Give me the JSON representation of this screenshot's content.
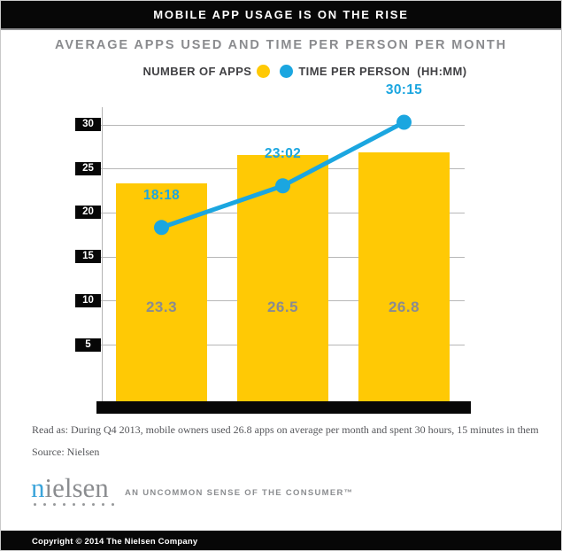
{
  "header": {
    "title": "MOBILE APP USAGE IS ON THE RISE"
  },
  "subtitle": "AVERAGE APPS USED AND TIME PER PERSON PER MONTH",
  "legend": {
    "apps_label": "NUMBER OF APPS",
    "time_label": "TIME PER PERSON  (HH:MM)",
    "apps_color": "#FFC905",
    "time_color": "#1BA6E0"
  },
  "chart_data": {
    "type": "bar+line",
    "title": "AVERAGE APPS USED AND TIME PER PERSON PER MONTH",
    "ylim": [
      0,
      32
    ],
    "yticks": [
      5,
      10,
      15,
      20,
      25,
      30
    ],
    "grid": true,
    "legend_position": "top",
    "series": [
      {
        "name": "NUMBER OF APPS",
        "type": "bar",
        "color": "#FFC905",
        "values": [
          23.3,
          26.5,
          26.8
        ],
        "labels": [
          "23.3",
          "26.5",
          "26.8"
        ],
        "label_color": "#8a8b90"
      },
      {
        "name": "TIME PER PERSON (HH:MM)",
        "type": "line",
        "color": "#1BA6E0",
        "values": [
          18.3,
          23.03,
          30.25
        ],
        "labels": [
          "18:18",
          "23:02",
          "30:15"
        ]
      }
    ]
  },
  "footnotes": {
    "read_as": "Read as: During Q4 2013, mobile owners used 26.8 apps on average per month and spent 30 hours, 15 minutes in them",
    "source": "Source: Nielsen"
  },
  "logo": {
    "first_letter": "n",
    "rest": "ielsen",
    "tagline": "AN UNCOMMON SENSE OF THE CONSUMER™",
    "text_color": "#8b8d90",
    "accent_color": "#3ba4da"
  },
  "footer": {
    "copyright": "Copyright © 2014 The Nielsen Company"
  }
}
